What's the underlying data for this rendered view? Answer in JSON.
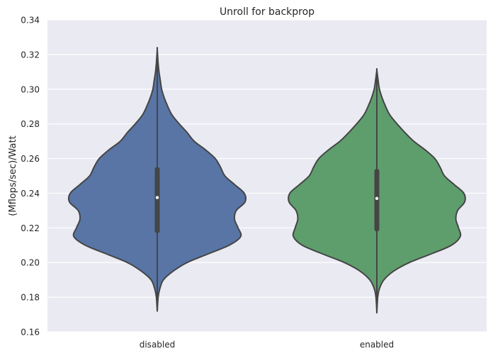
{
  "chart_data": {
    "type": "violin",
    "title": "Unroll for backprop",
    "xlabel": "",
    "ylabel": "(Mflops/sec)/Watt",
    "ylim": [
      0.16,
      0.34
    ],
    "yticks": [
      "0.16",
      "0.18",
      "0.20",
      "0.22",
      "0.24",
      "0.26",
      "0.28",
      "0.30",
      "0.32",
      "0.34"
    ],
    "grid": true,
    "categories": [
      "disabled",
      "enabled"
    ],
    "colors": [
      "#5875a6",
      "#5e9e6d"
    ],
    "series": [
      {
        "category": "disabled",
        "range": [
          0.172,
          0.323
        ],
        "q1": 0.217,
        "median": 0.2375,
        "q3": 0.255,
        "density": [
          [
            0.172,
            0.0
          ],
          [
            0.18,
            0.01
          ],
          [
            0.185,
            0.03
          ],
          [
            0.19,
            0.07
          ],
          [
            0.195,
            0.18
          ],
          [
            0.2,
            0.34
          ],
          [
            0.205,
            0.58
          ],
          [
            0.21,
            0.82
          ],
          [
            0.215,
            0.95
          ],
          [
            0.22,
            0.92
          ],
          [
            0.225,
            0.88
          ],
          [
            0.23,
            0.9
          ],
          [
            0.235,
            1.0
          ],
          [
            0.24,
            0.99
          ],
          [
            0.245,
            0.88
          ],
          [
            0.25,
            0.77
          ],
          [
            0.255,
            0.72
          ],
          [
            0.26,
            0.66
          ],
          [
            0.265,
            0.55
          ],
          [
            0.27,
            0.42
          ],
          [
            0.275,
            0.34
          ],
          [
            0.28,
            0.25
          ],
          [
            0.285,
            0.17
          ],
          [
            0.29,
            0.12
          ],
          [
            0.295,
            0.08
          ],
          [
            0.3,
            0.05
          ],
          [
            0.305,
            0.035
          ],
          [
            0.31,
            0.02
          ],
          [
            0.315,
            0.01
          ],
          [
            0.323,
            0.0
          ]
        ]
      },
      {
        "category": "enabled",
        "range": [
          0.171,
          0.311
        ],
        "q1": 0.218,
        "median": 0.237,
        "q3": 0.254,
        "density": [
          [
            0.171,
            0.0
          ],
          [
            0.18,
            0.01
          ],
          [
            0.185,
            0.03
          ],
          [
            0.19,
            0.08
          ],
          [
            0.195,
            0.19
          ],
          [
            0.2,
            0.37
          ],
          [
            0.205,
            0.62
          ],
          [
            0.21,
            0.85
          ],
          [
            0.215,
            0.95
          ],
          [
            0.22,
            0.93
          ],
          [
            0.225,
            0.9
          ],
          [
            0.23,
            0.92
          ],
          [
            0.235,
            1.0
          ],
          [
            0.24,
            0.99
          ],
          [
            0.245,
            0.88
          ],
          [
            0.25,
            0.77
          ],
          [
            0.255,
            0.72
          ],
          [
            0.26,
            0.66
          ],
          [
            0.265,
            0.55
          ],
          [
            0.27,
            0.42
          ],
          [
            0.275,
            0.32
          ],
          [
            0.28,
            0.23
          ],
          [
            0.285,
            0.15
          ],
          [
            0.29,
            0.1
          ],
          [
            0.295,
            0.06
          ],
          [
            0.3,
            0.03
          ],
          [
            0.305,
            0.015
          ],
          [
            0.311,
            0.0
          ]
        ]
      }
    ]
  }
}
